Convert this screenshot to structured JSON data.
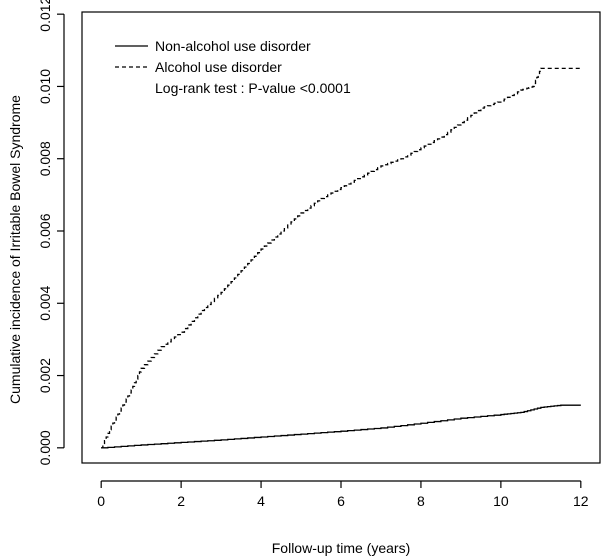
{
  "chart_data": {
    "type": "line",
    "title": "",
    "xlabel": "Follow-up time (years)",
    "ylabel": "Cumulative incidence of Irritable Bowel Syndrome",
    "xlim": [
      0,
      12
    ],
    "ylim": [
      0,
      0.012
    ],
    "x_ticks": [
      "0",
      "2",
      "4",
      "6",
      "8",
      "10",
      "12"
    ],
    "y_ticks": [
      "0.000",
      "0.002",
      "0.004",
      "0.006",
      "0.008",
      "0.010",
      "0.012"
    ],
    "grid": false,
    "legend_position": "top-left",
    "annotation": "Log-rank test : P-value <0.0001",
    "series": [
      {
        "name": "Non-alcohol use disorder",
        "line_style": "solid",
        "color": "#000000",
        "x": [
          0,
          1,
          2,
          3,
          4,
          5,
          6,
          7,
          8,
          9,
          10,
          10.5,
          11,
          11.5,
          12
        ],
        "y": [
          0.0,
          8e-05,
          0.00015,
          0.00022,
          0.0003,
          0.00038,
          0.00046,
          0.00055,
          0.00068,
          0.00082,
          0.00092,
          0.00098,
          0.00112,
          0.00118,
          0.00118
        ]
      },
      {
        "name": "Alcohol use disorder",
        "line_style": "dashed",
        "color": "#000000",
        "x": [
          0,
          0.25,
          0.5,
          0.75,
          1,
          1.5,
          2,
          2.5,
          3,
          3.5,
          4,
          4.5,
          5,
          5.5,
          6,
          6.5,
          7,
          7.5,
          8,
          8.5,
          9,
          9.5,
          10,
          10.5,
          10.8,
          11,
          11.5,
          12
        ],
        "y": [
          0.0,
          0.0006,
          0.0011,
          0.0016,
          0.0022,
          0.0028,
          0.0032,
          0.0038,
          0.0043,
          0.0049,
          0.0055,
          0.006,
          0.0065,
          0.0069,
          0.0072,
          0.0075,
          0.0078,
          0.008,
          0.0083,
          0.0086,
          0.009,
          0.0094,
          0.0096,
          0.0099,
          0.01,
          0.0105,
          0.0105,
          0.0105
        ]
      }
    ]
  }
}
